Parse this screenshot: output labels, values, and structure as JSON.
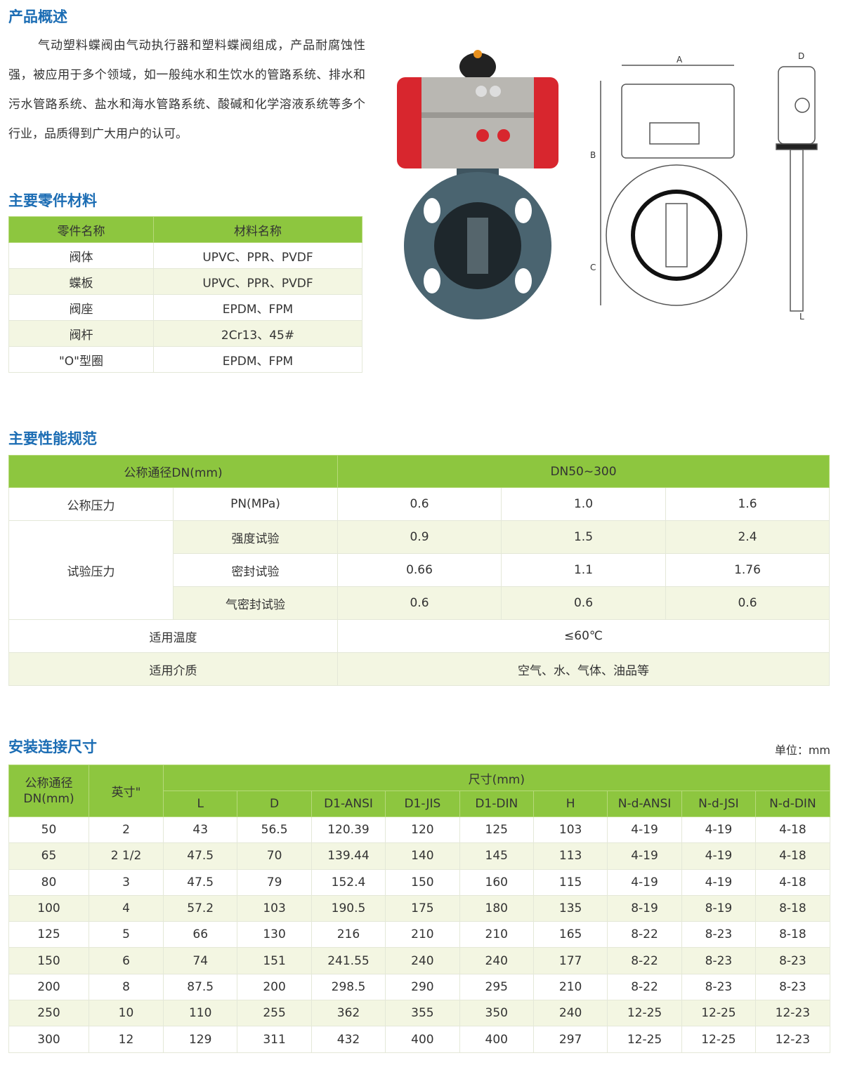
{
  "overview": {
    "title": "产品概述",
    "text": "气动塑料蝶阀由气动执行器和塑料蝶阀组成，产品耐腐蚀性强，被应用于多个领域，如一般纯水和生饮水的管路系统、排水和污水管路系统、盐水和海水管路系统、酸碱和化学溶液系统等多个行业，品质得到广大用户的认可。"
  },
  "drawing_labels": {
    "A": "A",
    "B": "B",
    "C": "C",
    "D": "D",
    "L": "L"
  },
  "materials": {
    "title": "主要零件材料",
    "headers": [
      "零件名称",
      "材料名称"
    ],
    "rows": [
      [
        "阀体",
        "UPVC、PPR、PVDF"
      ],
      [
        "蝶板",
        "UPVC、PPR、PVDF"
      ],
      [
        "阀座",
        "EPDM、FPM"
      ],
      [
        "阀杆",
        "2Cr13、45#"
      ],
      [
        "\"O\"型圈",
        "EPDM、FPM"
      ]
    ]
  },
  "performance": {
    "title": "主要性能规范",
    "dn_label": "公称通径DN(mm)",
    "dn_value": "DN50~300",
    "nominal_label": "公称压力",
    "pn_label": "PN(MPa)",
    "pn": [
      "0.6",
      "1.0",
      "1.6"
    ],
    "test_label": "试验压力",
    "tests": [
      {
        "name": "强度试验",
        "values": [
          "0.9",
          "1.5",
          "2.4"
        ]
      },
      {
        "name": "密封试验",
        "values": [
          "0.66",
          "1.1",
          "1.76"
        ]
      },
      {
        "name": "气密封试验",
        "values": [
          "0.6",
          "0.6",
          "0.6"
        ]
      }
    ],
    "temp_label": "适用温度",
    "temp_value": "≤60℃",
    "medium_label": "适用介质",
    "medium_value": "空气、水、气体、油品等"
  },
  "dimensions": {
    "title": "安装连接尺寸",
    "unit": "单位：mm",
    "h_dn": "公称通径DN(mm)",
    "h_inch": "英寸\"",
    "h_size": "尺寸(mm)",
    "cols": [
      "L",
      "D",
      "D1-ANSI",
      "D1-JIS",
      "D1-DIN",
      "H",
      "N-d-ANSI",
      "N-d-JSI",
      "N-d-DIN"
    ],
    "rows": [
      [
        "50",
        "2",
        "43",
        "56.5",
        "120.39",
        "120",
        "125",
        "103",
        "4-19",
        "4-19",
        "4-18"
      ],
      [
        "65",
        "2 1/2",
        "47.5",
        "70",
        "139.44",
        "140",
        "145",
        "113",
        "4-19",
        "4-19",
        "4-18"
      ],
      [
        "80",
        "3",
        "47.5",
        "79",
        "152.4",
        "150",
        "160",
        "115",
        "4-19",
        "4-19",
        "4-18"
      ],
      [
        "100",
        "4",
        "57.2",
        "103",
        "190.5",
        "175",
        "180",
        "135",
        "8-19",
        "8-19",
        "8-18"
      ],
      [
        "125",
        "5",
        "66",
        "130",
        "216",
        "210",
        "210",
        "165",
        "8-22",
        "8-23",
        "8-18"
      ],
      [
        "150",
        "6",
        "74",
        "151",
        "241.55",
        "240",
        "240",
        "177",
        "8-22",
        "8-23",
        "8-23"
      ],
      [
        "200",
        "8",
        "87.5",
        "200",
        "298.5",
        "290",
        "295",
        "210",
        "8-22",
        "8-23",
        "8-23"
      ],
      [
        "250",
        "10",
        "110",
        "255",
        "362",
        "355",
        "350",
        "240",
        "12-25",
        "12-25",
        "12-23"
      ],
      [
        "300",
        "12",
        "129",
        "311",
        "432",
        "400",
        "400",
        "297",
        "12-25",
        "12-25",
        "12-23"
      ]
    ]
  },
  "colors": {
    "title": "#1c6db4",
    "header_green": "#8dc63f",
    "row_alt": "#f3f6e2"
  }
}
